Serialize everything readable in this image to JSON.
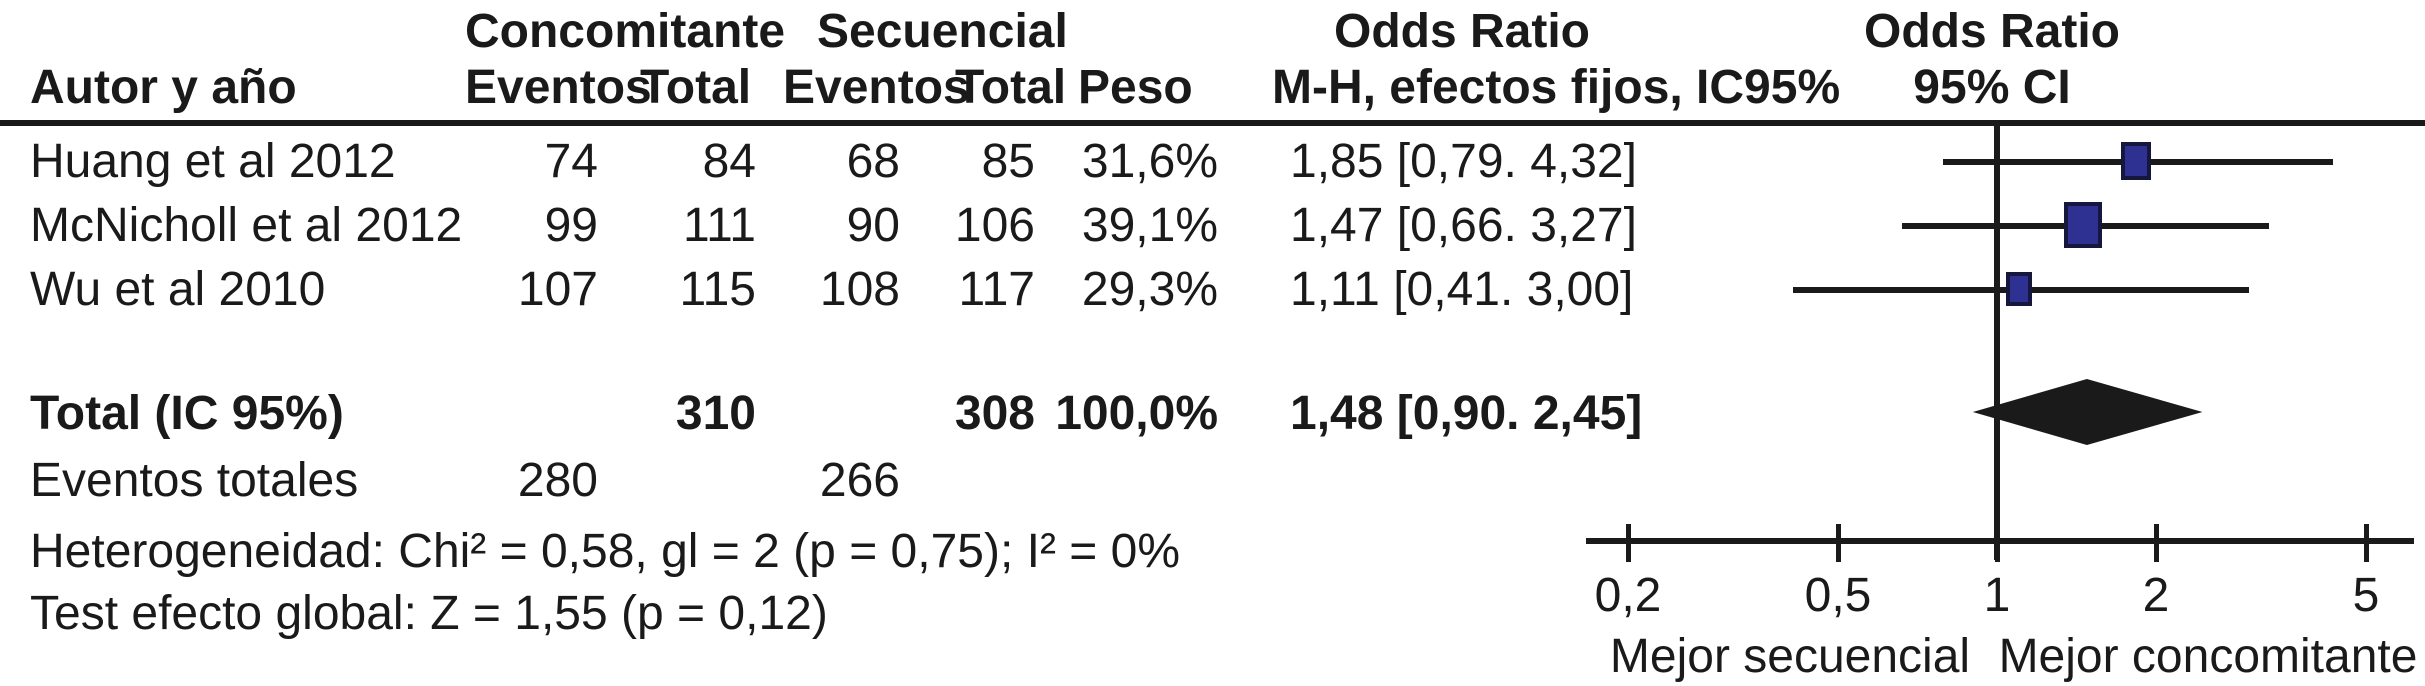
{
  "header": {
    "group1": "Concomitante",
    "group2": "Secuencial",
    "or_title": "Odds Ratio",
    "or_subtitle": "M-H, efectos fijos, IC95%",
    "plot_title": "Odds Ratio",
    "plot_subtitle": "95% CI",
    "author": "Autor y año",
    "events1": "Eventos",
    "total1": "Total",
    "events2": "Eventos",
    "total2": "Total",
    "weight": "Peso"
  },
  "table": {
    "rows": [
      {
        "author": "Huang et al 2012",
        "e1": "74",
        "t1": "84",
        "e2": "68",
        "t2": "85",
        "weight": "31,6%",
        "or": "1,85 [0,79. 4,32]"
      },
      {
        "author": "McNicholl et al 2012",
        "e1": "99",
        "t1": "111",
        "e2": "90",
        "t2": "106",
        "weight": "39,1%",
        "or": "1,47 [0,66. 3,27]"
      },
      {
        "author": "Wu et al 2010",
        "e1": "107",
        "t1": "115",
        "e2": "108",
        "t2": "117",
        "weight": "29,3%",
        "or": "1,11 [0,41. 3,00]"
      }
    ],
    "total_row": {
      "label": "Total (IC 95%)",
      "t1": "310",
      "t2": "308",
      "weight": "100,0%",
      "or": "1,48 [0,90. 2,45]"
    },
    "events_row": {
      "label": "Eventos totales",
      "e1": "280",
      "e2": "266"
    },
    "footnote1": "Heterogeneidad: Chi² = 0,58, gl = 2 (p = 0,75); I² = 0%",
    "footnote2": "Test efecto global: Z = 1,55 (p = 0,12)"
  },
  "chart_data": {
    "type": "forest",
    "x_scale": "log",
    "axis_ticks": [
      0.2,
      0.5,
      1,
      2,
      5
    ],
    "axis_tick_labels": [
      "0,2",
      "0,5",
      "1",
      "2",
      "5"
    ],
    "null_line_value": 1,
    "studies": [
      {
        "name": "Huang et al 2012",
        "or": 1.85,
        "ci_low": 0.79,
        "ci_high": 4.32,
        "weight_pct": 31.6
      },
      {
        "name": "McNicholl et al 2012",
        "or": 1.47,
        "ci_low": 0.66,
        "ci_high": 3.27,
        "weight_pct": 39.1
      },
      {
        "name": "Wu et al 2010",
        "or": 1.11,
        "ci_low": 0.41,
        "ci_high": 3.0,
        "weight_pct": 29.3
      }
    ],
    "total": {
      "label": "Total (IC 95%)",
      "or": 1.48,
      "ci_low": 0.9,
      "ci_high": 2.45,
      "weight_pct": 100.0
    },
    "left_direction_label": "Mejor secuencial",
    "right_direction_label": "Mejor concomitante"
  },
  "colors": {
    "square_fill": "#2e3192",
    "square_border": "#15173d",
    "diamond": "#1a1a1a",
    "line": "#1a1a1a"
  }
}
